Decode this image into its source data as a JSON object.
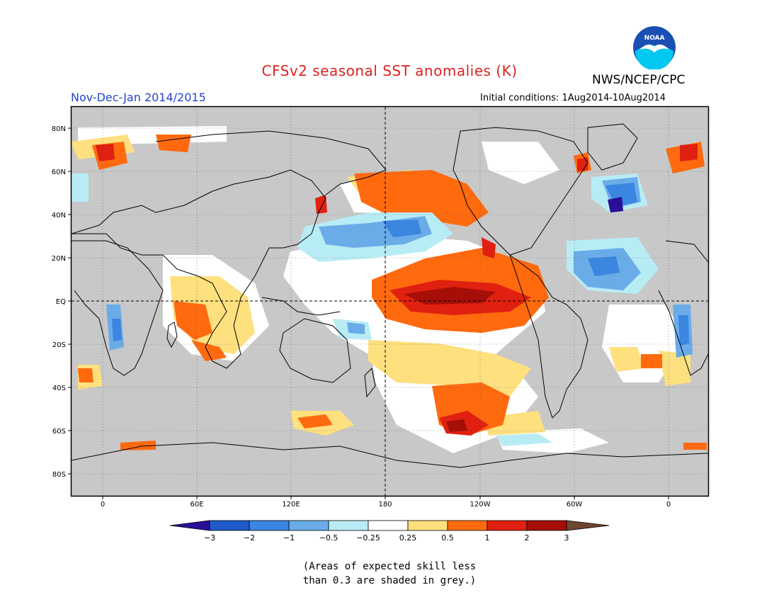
{
  "title": "CFSv2 seasonal SST anomalies (K)",
  "agency": "NWS/NCEP/CPC",
  "logo": {
    "text": "NOAA",
    "colors": {
      "ring": "#1a4fb3",
      "sky": "#00c8f0",
      "bird": "#ffffff"
    }
  },
  "period": "Nov-Dec-Jan 2014/2015",
  "initial_conditions": "Initial conditions: 1Aug2014-10Aug2014",
  "map": {
    "projection": "equirectangular",
    "lon_range": [
      -20,
      380
    ],
    "lat_range": [
      -90,
      90
    ],
    "lat_labels": [
      "80N",
      "60N",
      "40N",
      "20N",
      "EQ",
      "20S",
      "40S",
      "60S",
      "80S"
    ],
    "lon_labels": [
      "0",
      "60E",
      "120E",
      "180",
      "120W",
      "60W",
      "0"
    ],
    "land_color": "#c8c8c8",
    "grey_shade_color": "#c8c8c8",
    "reference_lines": [
      "Equator",
      "180 meridian"
    ]
  },
  "colorbar": {
    "ticks": [
      "−3",
      "−2",
      "−1",
      "−0.5",
      "−0.25",
      "0.25",
      "0.5",
      "1",
      "2",
      "3"
    ],
    "colors": [
      "#2a0f99",
      "#1e5bc8",
      "#3a86e0",
      "#6aace8",
      "#b8ecf5",
      "#ffffff",
      "#ffe07f",
      "#ff6a0f",
      "#e02010",
      "#a50f08",
      "#6e4630"
    ]
  },
  "note": [
    "(Areas of expected skill less",
    "than 0.3 are shaded in grey.)"
  ],
  "anomaly_legend_colors": {
    "strong_cold": "#2a0f99",
    "cold_2": "#1e5bc8",
    "cold_1": "#3a86e0",
    "cold_05": "#6aace8",
    "cold_025": "#b8ecf5",
    "neutral": "#ffffff",
    "warm_025": "#ffe07f",
    "warm_05": "#ff6a0f",
    "warm_1": "#e02010",
    "warm_2": "#a50f08"
  }
}
